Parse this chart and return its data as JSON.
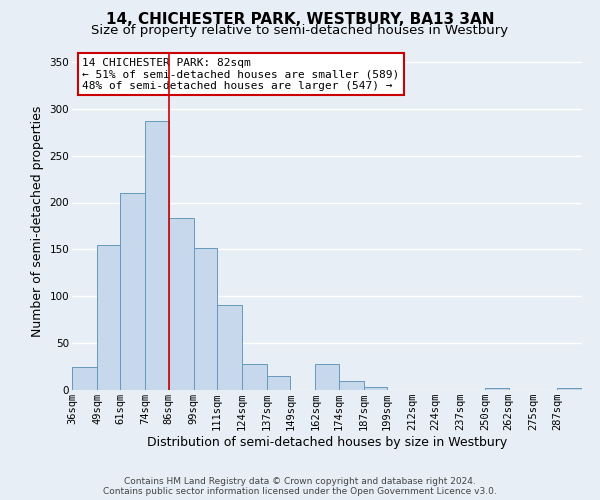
{
  "title": "14, CHICHESTER PARK, WESTBURY, BA13 3AN",
  "subtitle": "Size of property relative to semi-detached houses in Westbury",
  "xlabel": "Distribution of semi-detached houses by size in Westbury",
  "ylabel": "Number of semi-detached properties",
  "bin_labels": [
    "36sqm",
    "49sqm",
    "61sqm",
    "74sqm",
    "86sqm",
    "99sqm",
    "111sqm",
    "124sqm",
    "137sqm",
    "149sqm",
    "162sqm",
    "174sqm",
    "187sqm",
    "199sqm",
    "212sqm",
    "224sqm",
    "237sqm",
    "250sqm",
    "262sqm",
    "275sqm",
    "287sqm"
  ],
  "bin_edges": [
    36,
    49,
    61,
    74,
    86,
    99,
    111,
    124,
    137,
    149,
    162,
    174,
    187,
    199,
    212,
    224,
    237,
    250,
    262,
    275,
    287,
    300
  ],
  "bar_heights": [
    25,
    155,
    210,
    287,
    183,
    152,
    91,
    28,
    15,
    0,
    28,
    10,
    3,
    0,
    0,
    0,
    0,
    2,
    0,
    0,
    2
  ],
  "bar_color": "#c8d8ec",
  "bar_edge_color": "#6699bb",
  "vline_x": 86,
  "vline_color": "#cc0000",
  "ylim": [
    0,
    360
  ],
  "yticks": [
    0,
    50,
    100,
    150,
    200,
    250,
    300,
    350
  ],
  "annotation_title": "14 CHICHESTER PARK: 82sqm",
  "annotation_line1": "← 51% of semi-detached houses are smaller (589)",
  "annotation_line2": "48% of semi-detached houses are larger (547) →",
  "annotation_box_color": "#ffffff",
  "annotation_box_edge": "#cc0000",
  "footer_line1": "Contains HM Land Registry data © Crown copyright and database right 2024.",
  "footer_line2": "Contains public sector information licensed under the Open Government Licence v3.0.",
  "background_color": "#e8eef5",
  "plot_bg_color": "#e8eef5",
  "grid_color": "#ffffff",
  "title_fontsize": 11,
  "subtitle_fontsize": 9.5,
  "axis_label_fontsize": 9,
  "tick_fontsize": 7.5,
  "annotation_fontsize": 8,
  "footer_fontsize": 6.5
}
